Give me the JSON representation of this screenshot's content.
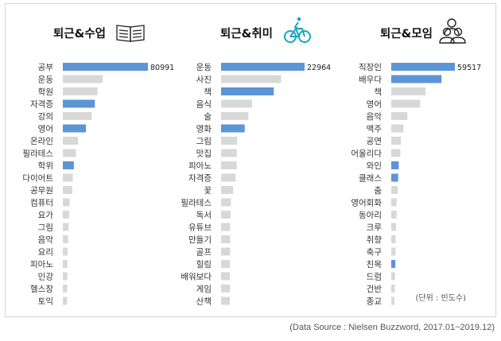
{
  "colors": {
    "highlight": "#5b95d6",
    "normal": "#d8d8d8",
    "icon_teal": "#1aa5bf"
  },
  "unit_label": "(단위 : 빈도수)",
  "source": "(Data Source : Nielsen Buzzword, 2017.01~2019.12)",
  "chart_data": [
    {
      "type": "bar",
      "title": "퇴근&수업",
      "icon": "book-icon",
      "categories": [
        "공부",
        "운동",
        "학원",
        "자격증",
        "강의",
        "영어",
        "온라인",
        "필라테스",
        "학위",
        "다이어트",
        "공무원",
        "컴퓨터",
        "요가",
        "그림",
        "음악",
        "요리",
        "피아노",
        "인강",
        "헬스장",
        "토익"
      ],
      "values": [
        80991,
        38000,
        33000,
        30500,
        27500,
        22000,
        14500,
        12500,
        10500,
        9500,
        9000,
        6500,
        6000,
        5500,
        5000,
        4500,
        4300,
        4200,
        4100,
        4000
      ],
      "highlighted": [
        0,
        3,
        5,
        8
      ],
      "labeled_value": "80991"
    },
    {
      "type": "bar",
      "title": "퇴근&취미",
      "icon": "bicycle-icon",
      "categories": [
        "운동",
        "사진",
        "책",
        "음식",
        "술",
        "영화",
        "그림",
        "맛집",
        "피아노",
        "자격증",
        "꽃",
        "필라테스",
        "독서",
        "유튜브",
        "만들기",
        "골프",
        "힐링",
        "배워보다",
        "게임",
        "산책"
      ],
      "values": [
        22964,
        16500,
        14500,
        8500,
        7500,
        6500,
        4400,
        4300,
        4300,
        4000,
        3300,
        2700,
        2600,
        2500,
        2500,
        2500,
        2400,
        2400,
        2400,
        2400
      ],
      "highlighted": [
        0,
        2,
        5
      ],
      "labeled_value": "22964"
    },
    {
      "type": "bar",
      "title": "퇴근&모임",
      "icon": "people-icon",
      "categories": [
        "직장인",
        "배우다",
        "책",
        "영어",
        "음악",
        "맥주",
        "공연",
        "어울리다",
        "와인",
        "클래스",
        "춤",
        "영어회화",
        "동아리",
        "크루",
        "취향",
        "축구",
        "친목",
        "드럼",
        "건반",
        "종교"
      ],
      "values": [
        59517,
        47000,
        32000,
        27000,
        15000,
        11500,
        9000,
        8500,
        7000,
        6500,
        6000,
        5000,
        5000,
        4500,
        4200,
        4000,
        3800,
        3500,
        3300,
        3000
      ],
      "highlighted": [
        0,
        1,
        8,
        9,
        16
      ],
      "labeled_value": "59517"
    }
  ]
}
